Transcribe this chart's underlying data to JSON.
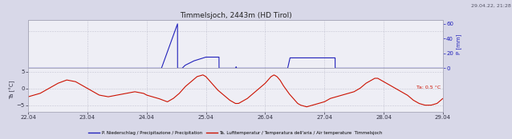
{
  "title": "Timmelsjoch, 2443m (HD Tirol)",
  "timestamp": "29.04.22, 21:28",
  "x_ticks": [
    0,
    1,
    2,
    3,
    4,
    5,
    6,
    7
  ],
  "x_labels": [
    "22.04",
    "23.04",
    "24.04",
    "25.04",
    "26.04",
    "27.04",
    "28.04",
    "29.04"
  ],
  "precip_color": "#2222bb",
  "precip_ylabel": "P [mm]",
  "precip_ylim": [
    0,
    65
  ],
  "precip_yticks": [
    0,
    20,
    40,
    60
  ],
  "temp_color": "#cc1100",
  "temp_ylabel": "Ta [°C]",
  "temp_ylim": [
    -7,
    6
  ],
  "temp_yticks": [
    -5,
    0,
    5
  ],
  "temp_annotation": "Ta: 0.5 °C",
  "legend_precip": "P. Niederschlag / Precipitazione / Precipitation",
  "legend_temp": "Ta. Lufttemperatur / Temperatura dell'aria / Air temperature  Timmelsjoch",
  "bg_color": "#d8d8e8",
  "plot_bg": "#eeeef5",
  "grid_color": "#bbbbcc",
  "border_color": "#aaaabb"
}
